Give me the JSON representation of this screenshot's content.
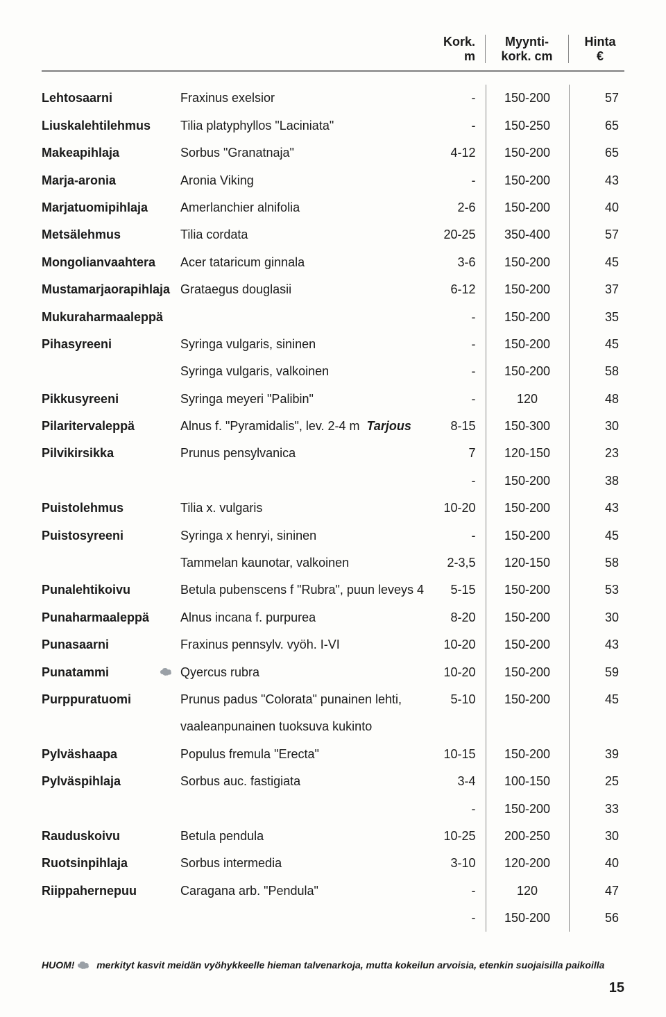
{
  "header": {
    "col2_l1": "Kork.",
    "col2_l2": "m",
    "col3_l1": "Myynti-",
    "col3_l2": "kork. cm",
    "col4_l1": "Hinta",
    "col4_l2": "€"
  },
  "rows": [
    {
      "name": "Lehtosaarni",
      "desc": "Fraxinus exelsior",
      "kork": "-",
      "myynti": "150-200",
      "hinta": "57"
    },
    {
      "name": "Liuskalehtilehmus",
      "desc": "Tilia platyphyllos \"Laciniata\"",
      "kork": "-",
      "myynti": "150-250",
      "hinta": "65"
    },
    {
      "name": "Makeapihlaja",
      "desc": "Sorbus \"Granatnaja\"",
      "kork": "4-12",
      "myynti": "150-200",
      "hinta": "65"
    },
    {
      "name": "Marja-aronia",
      "desc": "Aronia Viking",
      "kork": "-",
      "myynti": "150-200",
      "hinta": "43"
    },
    {
      "name": "Marjatuomipihlaja",
      "desc": "Amerlanchier alnifolia",
      "kork": "2-6",
      "myynti": "150-200",
      "hinta": "40"
    },
    {
      "name": "Metsälehmus",
      "desc": "Tilia cordata",
      "kork": "20-25",
      "myynti": "350-400",
      "hinta": "57"
    },
    {
      "name": "Mongolianvaahtera",
      "desc": "Acer tataricum ginnala",
      "kork": "3-6",
      "myynti": "150-200",
      "hinta": "45"
    },
    {
      "name": "Mustamarjaorapihlaja",
      "desc": "Grataegus douglasii",
      "kork": "6-12",
      "myynti": "150-200",
      "hinta": "37"
    },
    {
      "name": "Mukuraharmaaleppä",
      "desc": "",
      "kork": "-",
      "myynti": "150-200",
      "hinta": "35"
    },
    {
      "name": "Pihasyreeni",
      "desc": "Syringa vulgaris, sininen",
      "kork": "-",
      "myynti": "150-200",
      "hinta": "45"
    },
    {
      "name": "",
      "desc": "Syringa vulgaris, valkoinen",
      "kork": "-",
      "myynti": "150-200",
      "hinta": "58"
    },
    {
      "name": "Pikkusyreeni",
      "desc": "Syringa meyeri \"Palibin\"",
      "kork": "-",
      "myynti": "120",
      "hinta": "48"
    },
    {
      "name": "Pilaritervaleppä",
      "desc": "Alnus f. \"Pyramidalis\", lev. 2-4 m",
      "tarjous": "Tarjous",
      "kork": "8-15",
      "myynti": "150-300",
      "hinta": "30"
    },
    {
      "name": "Pilvikirsikka",
      "desc": "Prunus pensylvanica",
      "kork": "7",
      "myynti": "120-150",
      "hinta": "23"
    },
    {
      "name": "",
      "desc": "",
      "kork": "-",
      "myynti": "150-200",
      "hinta": "38"
    },
    {
      "name": "Puistolehmus",
      "desc": "Tilia x. vulgaris",
      "kork": "10-20",
      "myynti": "150-200",
      "hinta": "43"
    },
    {
      "name": "Puistosyreeni",
      "desc": "Syringa x henryi, sininen",
      "kork": "-",
      "myynti": "150-200",
      "hinta": "45"
    },
    {
      "name": "",
      "desc": "Tammelan kaunotar, valkoinen",
      "kork": "2-3,5",
      "myynti": "120-150",
      "hinta": "58"
    },
    {
      "name": "Punalehtikoivu",
      "desc": "Betula pubenscens f \"Rubra\", puun leveys 4",
      "kork": "5-15",
      "myynti": "150-200",
      "hinta": "53"
    },
    {
      "name": "Punaharmaaleppä",
      "desc": "Alnus incana f. purpurea",
      "kork": "8-20",
      "myynti": "150-200",
      "hinta": "30"
    },
    {
      "name": "Punasaarni",
      "desc": "Fraxinus pennsylv. vyöh. I-VI",
      "kork": "10-20",
      "myynti": "150-200",
      "hinta": "43"
    },
    {
      "name": "Punatammi",
      "cloud": true,
      "desc": "Qyercus rubra",
      "kork": "10-20",
      "myynti": "150-200",
      "hinta": "59"
    },
    {
      "name": "Purppuratuomi",
      "desc": "Prunus  padus \"Colorata\" punainen lehti,",
      "kork": "5-10",
      "myynti": "150-200",
      "hinta": "45"
    },
    {
      "name": "",
      "desc": "vaaleanpunainen tuoksuva kukinto",
      "kork": "",
      "myynti": "",
      "hinta": ""
    },
    {
      "name": "Pylväshaapa",
      "desc": "Populus fremula \"Erecta\"",
      "kork": "10-15",
      "myynti": "150-200",
      "hinta": "39"
    },
    {
      "name": "Pylväspihlaja",
      "desc": "Sorbus auc. fastigiata",
      "kork": "3-4",
      "myynti": "100-150",
      "hinta": "25"
    },
    {
      "name": "",
      "desc": "",
      "kork": "-",
      "myynti": "150-200",
      "hinta": "33"
    },
    {
      "name": "Rauduskoivu",
      "desc": "Betula pendula",
      "kork": "10-25",
      "myynti": "200-250",
      "hinta": "30"
    },
    {
      "name": "Ruotsinpihlaja",
      "desc": "Sorbus intermedia",
      "kork": "3-10",
      "myynti": "120-200",
      "hinta": "40"
    },
    {
      "name": "Riippahernepuu",
      "desc": "Caragana arb. \"Pendula\"",
      "kork": "-",
      "myynti": "120",
      "hinta": "47"
    },
    {
      "name": "",
      "desc": "",
      "kork": "-",
      "myynti": "150-200",
      "hinta": "56"
    }
  ],
  "footnote": {
    "huom": "HUOM!",
    "text": "merkityt kasvit meidän vyöhykkeelle hieman talvenarkoja, mutta kokeilun arvoisia, etenkin suojaisilla paikoilla"
  },
  "pagenum": "15",
  "colors": {
    "rule": "#9a9a9a",
    "border": "#888888",
    "text": "#1a1a1a",
    "bg": "#fdfdfb",
    "cloud": "#9aa0a6"
  }
}
